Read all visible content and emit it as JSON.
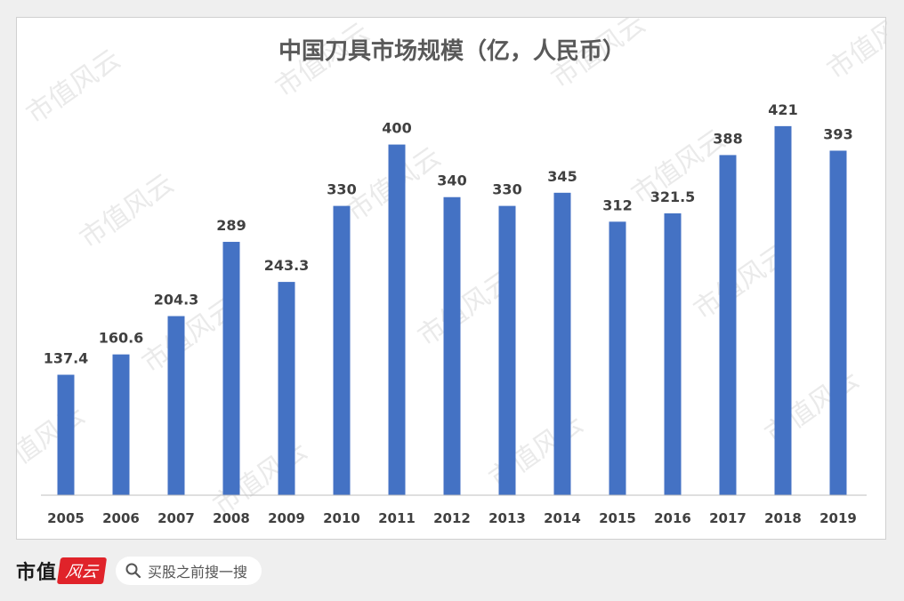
{
  "chart_data": {
    "type": "bar",
    "title": "中国刀具市场规模（亿，人民币）",
    "xlabel": "",
    "ylabel": "",
    "ylim": [
      0,
      430
    ],
    "grid": false,
    "categories": [
      "2005",
      "2006",
      "2007",
      "2008",
      "2009",
      "2010",
      "2011",
      "2012",
      "2013",
      "2014",
      "2015",
      "2016",
      "2017",
      "2018",
      "2019"
    ],
    "values": [
      137.4,
      160.6,
      204.3,
      289,
      243.3,
      330,
      400,
      340,
      330,
      345,
      312,
      321.5,
      388,
      421,
      393
    ],
    "value_labels": [
      "137.4",
      "160.6",
      "204.3",
      "289",
      "243.3",
      "330",
      "400",
      "340",
      "330",
      "345",
      "312",
      "321.5",
      "388",
      "421",
      "393"
    ],
    "bar_color": "#4472c4"
  },
  "watermark": "市值风云",
  "footer": {
    "brand": "市值",
    "seal": "风云",
    "search_placeholder": "买股之前搜一搜"
  }
}
